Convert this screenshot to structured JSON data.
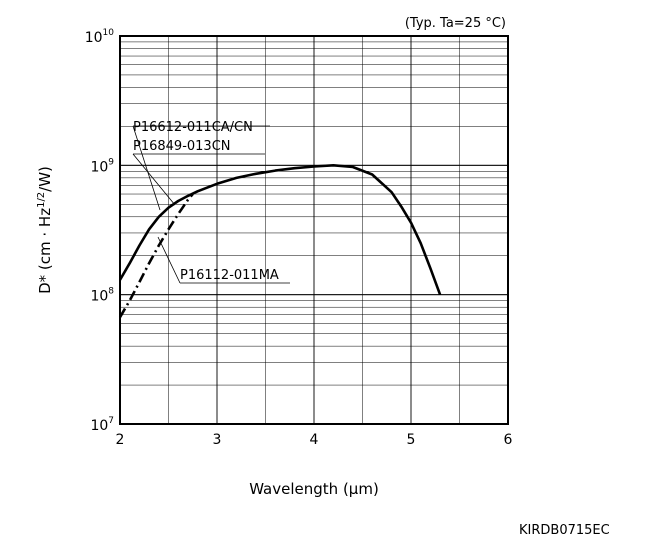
{
  "chart_data": {
    "type": "line",
    "condition": "(Typ. Ta=25 °C)",
    "xlabel": "Wavelength (μm)",
    "ylabel_parts": {
      "main": "D* (cm · Hz",
      "sup": "1/2",
      "tail": "/W)"
    },
    "xlim": [
      2,
      6
    ],
    "ylim": [
      10000000,
      10000000000
    ],
    "yscale": "log",
    "grid": true,
    "x_ticks": [
      {
        "value": 2,
        "label": "2"
      },
      {
        "value": 3,
        "label": "3"
      },
      {
        "value": 4,
        "label": "4"
      },
      {
        "value": 5,
        "label": "5"
      },
      {
        "value": 6,
        "label": "6"
      }
    ],
    "y_ticks": [
      {
        "value": 10000000,
        "base": "10",
        "exp": "7"
      },
      {
        "value": 100000000,
        "base": "10",
        "exp": "8"
      },
      {
        "value": 1000000000,
        "base": "10",
        "exp": "9"
      },
      {
        "value": 10000000000,
        "base": "10",
        "exp": "10"
      }
    ],
    "series": [
      {
        "name": "P16612-011CA/CN",
        "name2": "P16849-013CN",
        "style": "solid",
        "points": [
          [
            2.0,
            130000000
          ],
          [
            2.1,
            175000000
          ],
          [
            2.2,
            240000000
          ],
          [
            2.3,
            320000000
          ],
          [
            2.4,
            400000000
          ],
          [
            2.5,
            470000000
          ],
          [
            2.6,
            530000000
          ],
          [
            2.7,
            580000000
          ],
          [
            2.8,
            630000000
          ],
          [
            3.0,
            720000000
          ],
          [
            3.2,
            800000000
          ],
          [
            3.4,
            860000000
          ],
          [
            3.6,
            910000000
          ],
          [
            3.8,
            950000000
          ],
          [
            4.0,
            980000000
          ],
          [
            4.2,
            1000000000
          ],
          [
            4.4,
            970000000
          ],
          [
            4.6,
            850000000
          ],
          [
            4.8,
            620000000
          ],
          [
            4.9,
            480000000
          ],
          [
            5.0,
            360000000
          ],
          [
            5.1,
            250000000
          ],
          [
            5.2,
            160000000
          ],
          [
            5.3,
            100000000
          ]
        ]
      },
      {
        "name": "P16112-011MA",
        "style": "dash-dot",
        "points": [
          [
            2.0,
            67000000
          ],
          [
            2.1,
            90000000
          ],
          [
            2.2,
            125000000
          ],
          [
            2.3,
            175000000
          ],
          [
            2.4,
            240000000
          ],
          [
            2.5,
            320000000
          ],
          [
            2.6,
            420000000
          ],
          [
            2.7,
            540000000
          ],
          [
            2.75,
            600000000
          ]
        ]
      }
    ]
  },
  "figure_code": "KIRDB0715EC"
}
